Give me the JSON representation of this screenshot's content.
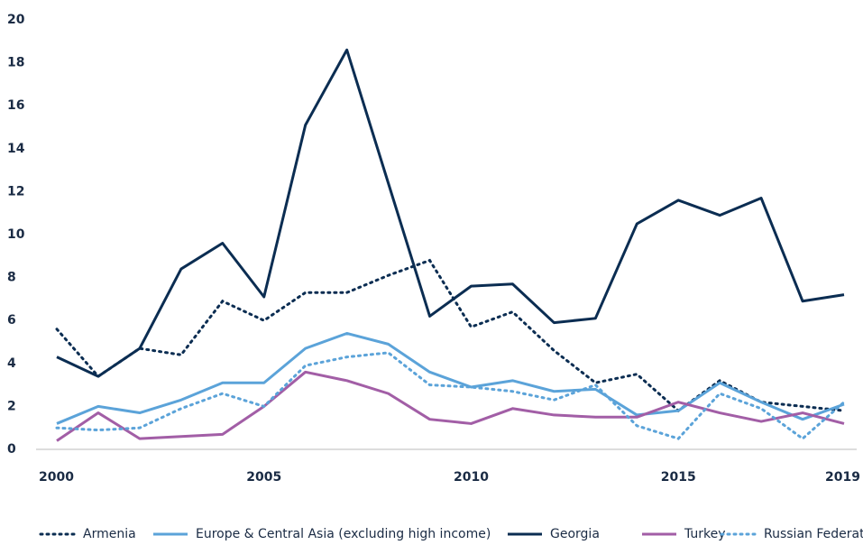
{
  "chart_data": {
    "type": "line",
    "x": [
      2000,
      2001,
      2002,
      2003,
      2004,
      2005,
      2006,
      2007,
      2008,
      2009,
      2010,
      2011,
      2012,
      2013,
      2014,
      2015,
      2016,
      2017,
      2018,
      2019
    ],
    "xlim": [
      2000,
      2019
    ],
    "xticks": [
      2000,
      2005,
      2010,
      2015,
      2019
    ],
    "ylim": [
      0,
      20
    ],
    "yticks": [
      0,
      2,
      4,
      6,
      8,
      10,
      12,
      14,
      16,
      18,
      20
    ],
    "grid": false,
    "legend": "bottom",
    "series": [
      {
        "name": "Armenia",
        "color": "#0b2d52",
        "style": "dotted",
        "values": [
          5.6,
          3.4,
          4.7,
          4.4,
          6.9,
          6.0,
          7.3,
          7.3,
          8.1,
          8.8,
          5.7,
          6.4,
          4.6,
          3.1,
          3.5,
          1.8,
          3.2,
          2.2,
          2.0,
          1.8
        ]
      },
      {
        "name": "Europe & Central Asia (excluding high income)",
        "color": "#5ba3d9",
        "style": "solid",
        "values": [
          1.2,
          2.0,
          1.7,
          2.3,
          3.1,
          3.1,
          4.7,
          5.4,
          4.9,
          3.6,
          2.9,
          3.2,
          2.7,
          2.8,
          1.6,
          1.8,
          3.1,
          2.2,
          1.4,
          2.1
        ]
      },
      {
        "name": "Georgia",
        "color": "#0b2d52",
        "style": "solid",
        "values": [
          4.3,
          3.4,
          4.7,
          8.4,
          9.6,
          7.1,
          15.1,
          18.6,
          12.4,
          6.2,
          7.6,
          7.7,
          5.9,
          6.1,
          10.5,
          11.6,
          10.9,
          11.7,
          6.9,
          7.2
        ]
      },
      {
        "name": "Turkey",
        "color": "#a25ea6",
        "style": "solid",
        "values": [
          0.4,
          1.7,
          0.5,
          0.6,
          0.7,
          2.0,
          3.6,
          3.2,
          2.6,
          1.4,
          1.2,
          1.9,
          1.6,
          1.5,
          1.5,
          2.2,
          1.7,
          1.3,
          1.7,
          1.2
        ]
      },
      {
        "name": "Russian Federation",
        "color": "#5ba3d9",
        "style": "dotted",
        "values": [
          1.0,
          0.9,
          1.0,
          1.9,
          2.6,
          2.0,
          3.9,
          4.3,
          4.5,
          3.0,
          2.9,
          2.7,
          2.3,
          3.0,
          1.1,
          0.5,
          2.6,
          1.9,
          0.5,
          2.2
        ]
      }
    ]
  }
}
